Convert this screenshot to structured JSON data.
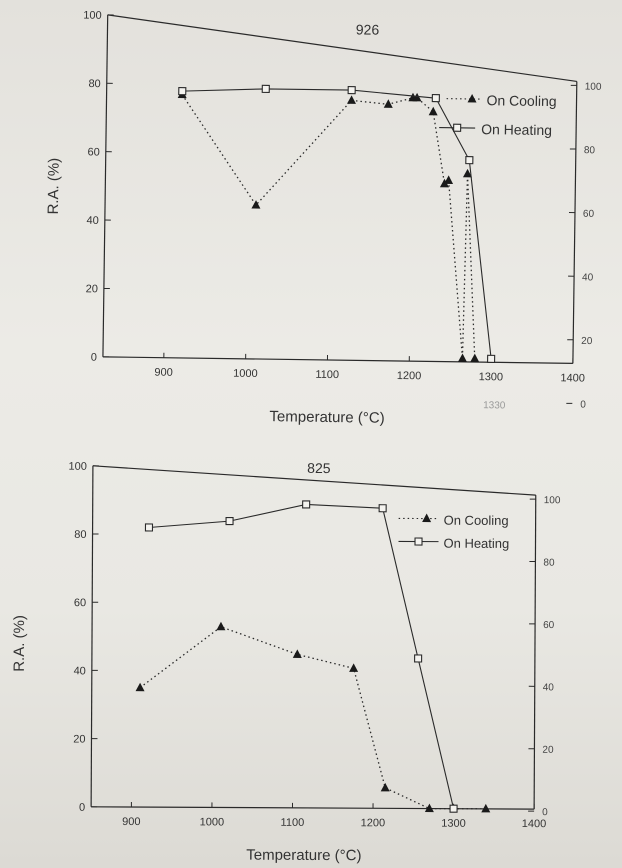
{
  "chart_data": [
    {
      "type": "line",
      "title": "926",
      "xlabel": "Temperature (°C)",
      "ylabel": "R.A. (%)",
      "xlim": [
        850,
        1400
      ],
      "ylim": [
        0,
        100
      ],
      "right_ylim": [
        0,
        100
      ],
      "x_ticks": [
        900,
        1000,
        1100,
        1200,
        1300,
        1400
      ],
      "y_ticks": [
        0,
        20,
        40,
        60,
        80,
        100
      ],
      "right_ticks": [
        0,
        20,
        40,
        60,
        80,
        100
      ],
      "legend": "top-right",
      "series": [
        {
          "name": "On Cooling",
          "marker": "filled-triangle",
          "line": "dotted",
          "x": [
            918,
            1010,
            1125,
            1170,
            1200,
            1205,
            1225,
            1240,
            1245,
            1265,
            1268,
            1280
          ],
          "y": [
            77,
            45,
            76,
            75,
            77,
            77,
            73,
            52,
            53,
            1,
            55,
            1
          ]
        },
        {
          "name": "On Heating",
          "marker": "open-square",
          "line": "solid",
          "x": [
            918,
            1020,
            1125,
            1228,
            1270,
            1300
          ],
          "y": [
            78,
            79,
            79,
            77,
            59,
            1
          ]
        }
      ],
      "annotations": [
        "1330"
      ]
    },
    {
      "type": "line",
      "title": "825",
      "xlabel": "Temperature (°C)",
      "ylabel": "R.A. (%)",
      "xlim": [
        850,
        1400
      ],
      "ylim": [
        0,
        100
      ],
      "right_ylim": [
        0,
        100
      ],
      "x_ticks": [
        900,
        1000,
        1100,
        1200,
        1300,
        1400
      ],
      "y_ticks": [
        0,
        20,
        40,
        60,
        80,
        100
      ],
      "right_ticks": [
        0,
        20,
        40,
        60,
        80,
        100
      ],
      "legend": "top-right",
      "series": [
        {
          "name": "On Cooling",
          "marker": "filled-triangle",
          "line": "dotted",
          "x": [
            910,
            1010,
            1105,
            1175,
            1215,
            1270,
            1340
          ],
          "y": [
            35,
            53,
            45,
            41,
            6,
            0,
            0
          ]
        },
        {
          "name": "On Heating",
          "marker": "open-square",
          "line": "solid",
          "x": [
            920,
            1020,
            1115,
            1210,
            1255,
            1300
          ],
          "y": [
            82,
            84,
            89,
            88,
            44,
            0
          ]
        }
      ]
    }
  ]
}
